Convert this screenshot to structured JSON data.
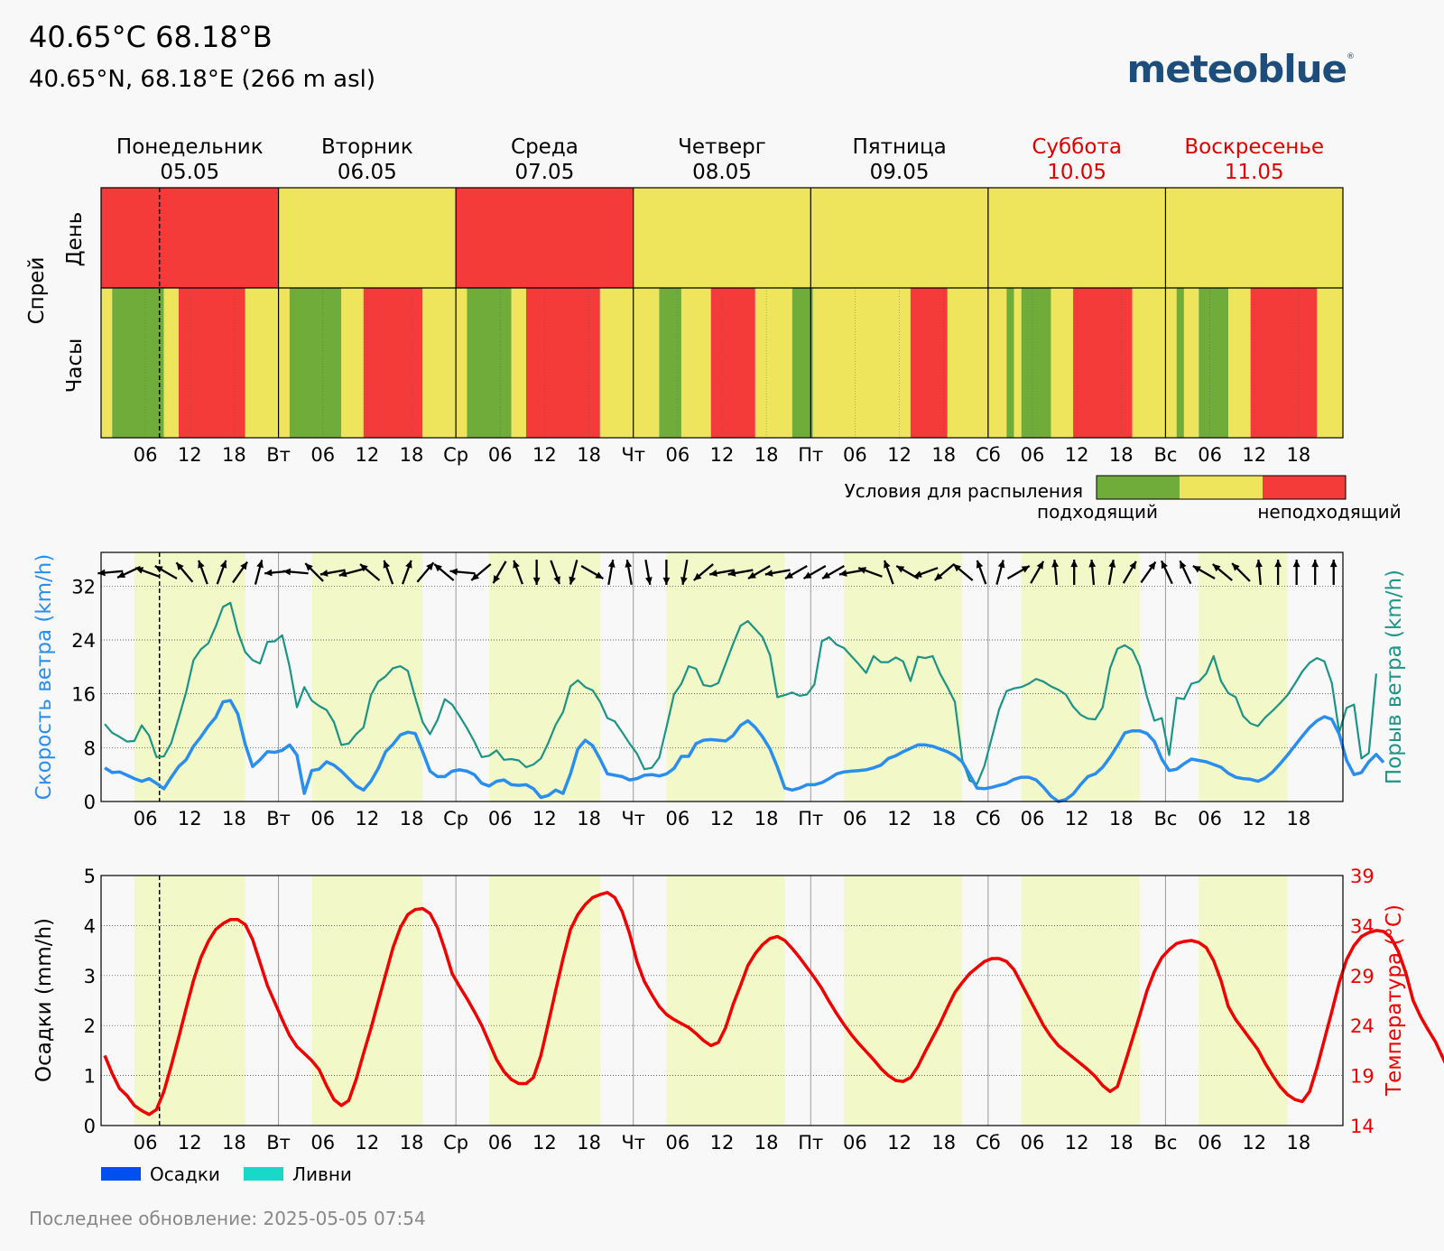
{
  "header": {
    "title": "40.65°C 68.18°B",
    "subtitle": "40.65°N, 68.18°E (266 m asl)",
    "logo": "meteoblue",
    "logo_mark": "®"
  },
  "footer": {
    "updated": "Последнее обновление: 2025-05-05 07:54"
  },
  "days": [
    {
      "name": "Понедельник",
      "date": "05.05",
      "abbr": "",
      "weekend": false
    },
    {
      "name": "Вторник",
      "date": "06.05",
      "abbr": "Вт",
      "weekend": false
    },
    {
      "name": "Среда",
      "date": "07.05",
      "abbr": "Ср",
      "weekend": false
    },
    {
      "name": "Четверг",
      "date": "08.05",
      "abbr": "Чт",
      "weekend": false
    },
    {
      "name": "Пятница",
      "date": "09.05",
      "abbr": "Пт",
      "weekend": false
    },
    {
      "name": "Суббота",
      "date": "10.05",
      "abbr": "Сб",
      "weekend": true
    },
    {
      "name": "Воскресенье",
      "date": "11.05",
      "abbr": "Вс",
      "weekend": true
    }
  ],
  "hour_ticks": [
    "06",
    "12",
    "18"
  ],
  "colors": {
    "good": "#6fac3a",
    "medium": "#efe55c",
    "bad": "#f53a3a",
    "daylight": "#f2f8c8",
    "wind": "#2a8ef0",
    "gust": "#1c9486",
    "temp": "#f00000",
    "weekend": "#e00000",
    "precip": "#0050f0",
    "showers": "#18d8c8"
  },
  "spray": {
    "ylabel": "Спрей",
    "day_label": "День",
    "hours_label": "Часы",
    "legend_title": "Условия для распыления",
    "legend_good": "подходящий",
    "legend_bad": "неподходящий",
    "daily": [
      "bad",
      "medium",
      "bad",
      "medium",
      "medium",
      "medium",
      "medium"
    ],
    "hourly_segments": [
      [
        "medium",
        0,
        1.5
      ],
      [
        "good",
        1.5,
        8.5
      ],
      [
        "medium",
        8.5,
        10.5
      ],
      [
        "bad",
        10.5,
        19.5
      ],
      [
        "medium",
        19.5,
        25.5
      ],
      [
        "good",
        25.5,
        32.5
      ],
      [
        "medium",
        32.5,
        35.5
      ],
      [
        "bad",
        35.5,
        43.5
      ],
      [
        "medium",
        43.5,
        49.5
      ],
      [
        "good",
        49.5,
        55.5
      ],
      [
        "medium",
        55.5,
        57.5
      ],
      [
        "bad",
        57.5,
        67.5
      ],
      [
        "medium",
        67.5,
        75.5
      ],
      [
        "good",
        75.5,
        78.5
      ],
      [
        "medium",
        78.5,
        82.5
      ],
      [
        "bad",
        82.5,
        88.5
      ],
      [
        "medium",
        88.5,
        93.5
      ],
      [
        "good",
        93.5,
        96.3
      ],
      [
        "medium",
        96.3,
        109.5
      ],
      [
        "bad",
        109.5,
        114.5
      ],
      [
        "medium",
        114.5,
        122.5
      ],
      [
        "good",
        122.5,
        123.5
      ],
      [
        "medium",
        123.5,
        124.5
      ],
      [
        "good",
        124.5,
        128.5
      ],
      [
        "medium",
        128.5,
        131.5
      ],
      [
        "bad",
        131.5,
        139.5
      ],
      [
        "medium",
        139.5,
        145.5
      ],
      [
        "good",
        145.5,
        146.5
      ],
      [
        "medium",
        146.5,
        148.5
      ],
      [
        "good",
        148.5,
        152.5
      ],
      [
        "medium",
        152.5,
        155.5
      ],
      [
        "bad",
        155.5,
        164.5
      ],
      [
        "medium",
        164.5,
        168
      ]
    ]
  },
  "daylight": [
    [
      4.5,
      19.5
    ],
    [
      28.5,
      43.5
    ],
    [
      52.5,
      67.5
    ],
    [
      76.5,
      92.5
    ],
    [
      100.5,
      116.5
    ],
    [
      124.5,
      140.5
    ],
    [
      148.5,
      160.5
    ]
  ],
  "now_hour": 7.9,
  "wind": {
    "ylabel_left": "Скорость ветра (km/h)",
    "ylabel_right": "Порыв ветра (km/h)",
    "yticks": [
      0,
      8,
      16,
      24,
      32
    ],
    "ylim": [
      0,
      37
    ],
    "speed": [
      5.0,
      4.3,
      4.4,
      3.9,
      3.4,
      3.0,
      3.4,
      2.7,
      1.9,
      3.6,
      5.2,
      6.2,
      8.2,
      9.6,
      11.2,
      12.5,
      14.8,
      15.0,
      13.0,
      8.5,
      5.2,
      6.2,
      7.4,
      7.3,
      7.6,
      8.4,
      6.9,
      1.2,
      4.6,
      4.8,
      5.9,
      5.4,
      4.5,
      3.4,
      2.3,
      1.7,
      3.0,
      4.9,
      7.4,
      8.5,
      9.9,
      10.3,
      10.1,
      7.4,
      4.5,
      3.7,
      3.7,
      4.5,
      4.7,
      4.5,
      4.0,
      2.7,
      2.3,
      3.0,
      3.2,
      2.5,
      2.4,
      2.5,
      1.9,
      0.6,
      0.9,
      1.7,
      1.2,
      4.1,
      7.8,
      9.1,
      8.3,
      6.3,
      4.1,
      3.9,
      3.7,
      3.2,
      3.4,
      3.9,
      4.0,
      3.8,
      4.1,
      4.9,
      6.7,
      6.7,
      8.6,
      9.1,
      9.2,
      9.1,
      9.0,
      9.8,
      11.3,
      12.0,
      11.0,
      9.6,
      7.8,
      5.1,
      2.0,
      1.7,
      2.0,
      2.5,
      2.5,
      2.8,
      3.4,
      4.1,
      4.4,
      4.5,
      4.6,
      4.7,
      5.0,
      5.4,
      6.4,
      6.8,
      7.4,
      7.9,
      8.4,
      8.4,
      8.2,
      7.8,
      7.4,
      6.8,
      5.9,
      4.0,
      2.0,
      1.9,
      2.1,
      2.4,
      2.7,
      3.3,
      3.6,
      3.6,
      3.2,
      2.1,
      0.8,
      0.0,
      0.3,
      1.1,
      2.5,
      3.7,
      4.1,
      5.1,
      6.6,
      8.3,
      10.2,
      10.5,
      10.5,
      10.1,
      8.9,
      6.3,
      4.6,
      4.8,
      5.6,
      6.3,
      6.1,
      5.9,
      5.5,
      5.1,
      4.2,
      3.6,
      3.4,
      3.3,
      3.0,
      3.5,
      4.4,
      5.6,
      6.9,
      8.3,
      9.7,
      11.0,
      12.0,
      12.6,
      12.2,
      10.0,
      6.1,
      4.0,
      4.3,
      5.9,
      7.0,
      5.8
    ],
    "gust": [
      11.5,
      10.2,
      9.6,
      8.9,
      9.0,
      11.3,
      9.8,
      6.6,
      6.7,
      8.7,
      12.4,
      16.2,
      21.0,
      22.6,
      23.5,
      26.0,
      28.9,
      29.5,
      25.2,
      22.2,
      21.0,
      20.5,
      23.7,
      23.8,
      24.7,
      20.0,
      14.0,
      17.0,
      15.0,
      14.2,
      13.6,
      11.8,
      8.4,
      8.6,
      10.0,
      11.0,
      15.8,
      17.8,
      18.6,
      19.8,
      20.1,
      19.4,
      15.4,
      11.8,
      10.0,
      12.1,
      15.2,
      14.4,
      12.7,
      10.9,
      8.9,
      6.6,
      6.8,
      7.6,
      6.2,
      6.3,
      6.1,
      5.1,
      5.5,
      6.4,
      8.7,
      11.4,
      13.3,
      17.1,
      18.0,
      17.0,
      16.5,
      14.8,
      12.4,
      11.9,
      10.3,
      8.6,
      7.1,
      4.8,
      5.0,
      6.5,
      11.1,
      15.9,
      17.5,
      20.1,
      19.7,
      17.3,
      17.1,
      17.6,
      20.5,
      23.4,
      26.1,
      26.8,
      25.6,
      24.4,
      21.7,
      15.5,
      15.8,
      16.2,
      15.7,
      15.9,
      17.4,
      23.8,
      24.4,
      23.3,
      22.8,
      21.6,
      20.4,
      19.1,
      21.6,
      20.7,
      20.7,
      21.4,
      20.8,
      17.9,
      21.5,
      21.3,
      21.6,
      19.0,
      17.0,
      14.8,
      6.2,
      3.1,
      2.6,
      5.3,
      9.5,
      13.7,
      16.4,
      16.8,
      17.0,
      17.5,
      18.2,
      17.8,
      17.1,
      16.6,
      15.9,
      14.1,
      12.9,
      12.3,
      12.2,
      14.0,
      19.8,
      22.7,
      23.2,
      22.5,
      20.1,
      15.5,
      12.0,
      12.4,
      6.9,
      15.4,
      15.2,
      17.5,
      17.8,
      19.0,
      21.6,
      17.9,
      16.1,
      15.5,
      12.7,
      11.6,
      11.2,
      12.5,
      13.5,
      14.6,
      15.8,
      17.5,
      19.3,
      20.6,
      21.3,
      20.8,
      17.6,
      10.3,
      13.9,
      14.4,
      6.4,
      7.2,
      19.0
    ],
    "arrows": [
      85,
      65,
      110,
      120,
      140,
      160,
      200,
      215,
      195,
      85,
      95,
      135,
      80,
      75,
      130,
      160,
      200,
      220,
      130,
      95,
      50,
      30,
      160,
      0,
      340,
      15,
      300,
      190,
      170,
      350,
      0,
      10,
      50,
      80,
      80,
      60,
      80,
      60,
      60,
      60,
      80,
      110,
      160,
      120,
      70,
      50,
      130,
      160,
      195,
      240,
      210,
      175,
      180,
      175,
      190,
      210,
      215,
      155,
      155,
      120,
      130,
      135,
      175,
      180,
      180,
      180,
      180
    ]
  },
  "precip": {
    "ylabel_left": "Осадки (mm/h)",
    "ylabel_right": "Температура (°C)",
    "yticks_left": [
      0,
      1,
      2,
      3,
      4,
      5
    ],
    "yticks_right": [
      14,
      19,
      24,
      29,
      34,
      39
    ],
    "legend_precip": "Осадки",
    "legend_showers": "Ливни",
    "precip_values": [],
    "temp": [
      21.0,
      19.2,
      17.7,
      17.0,
      16.0,
      15.5,
      15.1,
      15.6,
      17.4,
      20.0,
      22.8,
      25.7,
      28.5,
      30.8,
      32.4,
      33.6,
      34.2,
      34.6,
      34.6,
      34.1,
      32.6,
      30.3,
      28.0,
      26.3,
      24.6,
      23.0,
      21.9,
      21.2,
      20.5,
      19.6,
      18.0,
      16.6,
      16.0,
      16.5,
      18.6,
      21.2,
      23.7,
      26.4,
      29.1,
      31.8,
      33.8,
      35.1,
      35.6,
      35.7,
      35.2,
      33.8,
      31.6,
      29.2,
      27.9,
      26.7,
      25.4,
      24.0,
      22.3,
      20.6,
      19.4,
      18.6,
      18.2,
      18.2,
      18.8,
      21.0,
      24.2,
      27.5,
      30.7,
      33.6,
      35.1,
      36.1,
      36.8,
      37.1,
      37.3,
      36.8,
      35.4,
      33.2,
      30.4,
      28.4,
      27.1,
      25.9,
      25.1,
      24.6,
      24.2,
      23.8,
      23.2,
      22.5,
      22.0,
      22.3,
      23.8,
      26.1,
      28.0,
      30.0,
      31.2,
      32.1,
      32.7,
      32.9,
      32.5,
      31.7,
      30.8,
      29.8,
      28.8,
      27.7,
      26.4,
      25.2,
      24.1,
      23.1,
      22.2,
      21.4,
      20.6,
      19.7,
      19.0,
      18.5,
      18.4,
      18.8,
      19.9,
      21.4,
      22.8,
      24.2,
      25.8,
      27.3,
      28.3,
      29.2,
      29.8,
      30.4,
      30.7,
      30.7,
      30.4,
      29.6,
      28.2,
      26.8,
      25.4,
      24.0,
      22.9,
      22.0,
      21.4,
      20.8,
      20.2,
      19.6,
      18.9,
      18.0,
      17.4,
      17.9,
      20.2,
      22.6,
      25.0,
      27.5,
      29.4,
      30.8,
      31.6,
      32.2,
      32.4,
      32.5,
      32.3,
      31.8,
      30.5,
      28.5,
      25.9,
      24.6,
      23.6,
      22.6,
      21.6,
      20.2,
      19.0,
      17.9,
      17.1,
      16.6,
      16.4,
      17.4,
      19.8,
      22.6,
      25.4,
      28.3,
      30.6,
      32.0,
      32.9,
      33.3,
      33.5,
      33.4,
      32.8,
      31.4,
      29.3,
      26.5,
      24.9,
      23.6,
      22.4,
      20.8,
      19.2
    ]
  }
}
